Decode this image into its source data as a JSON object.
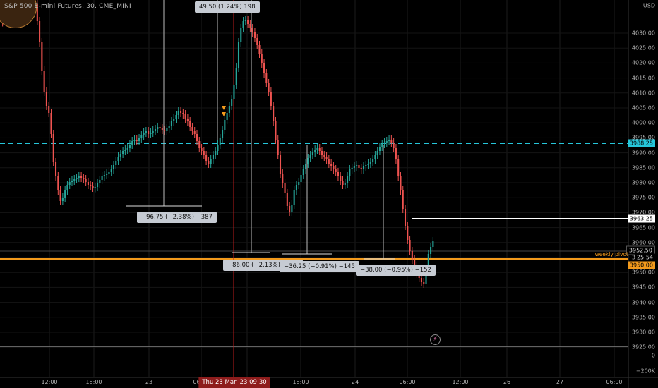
{
  "symbol": {
    "title": "S&P 500 E-mini Futures, 30, CME_MINI"
  },
  "price_axis": {
    "currency": "USD",
    "labels": [
      "4030.00",
      "4025.00",
      "4020.00",
      "4015.00",
      "4010.00",
      "4005.00",
      "4000.00",
      "3995.00",
      "3990.00",
      "3985.00",
      "3980.00",
      "3975.00",
      "3970.00",
      "3965.00",
      "3960.00",
      "3955.00",
      "3950.00",
      "3945.00",
      "3940.00",
      "3935.00",
      "3930.00",
      "3925.00"
    ],
    "volume_labels": [
      "0",
      "−200K"
    ],
    "tags": {
      "dashed_level": "3988.25",
      "resistance": "3963.25",
      "last_price": "3952.50",
      "countdown": "25:54",
      "pivot": "3950.00"
    }
  },
  "time_axis": {
    "labels": [
      "12:00",
      "18:00",
      "23",
      "06:00",
      "12:00",
      "18:00",
      "24",
      "06:00",
      "12:00",
      "26",
      "27",
      "06:00"
    ],
    "crosshair_label": "Thu 23 Mar '23   09:30"
  },
  "measurements": {
    "m1": "49.50 (1.24%) 198",
    "m2": "−96.75 (−2.38%) −387",
    "m3": "−86.00 (−2.13%) −344",
    "m4": "−36.25 (−0.91%) −145",
    "m5": "−38.00 (−0.95%) −152"
  },
  "annotations": {
    "pivot_label": "weekly pivot"
  },
  "colors": {
    "up": "#26a69a",
    "down": "#ef5350",
    "dashed": "#26c6da",
    "pivot": "#f39a1c",
    "crosshair": "#b71c1c"
  },
  "icons": {
    "alert": "lightning-alert-icon"
  }
}
